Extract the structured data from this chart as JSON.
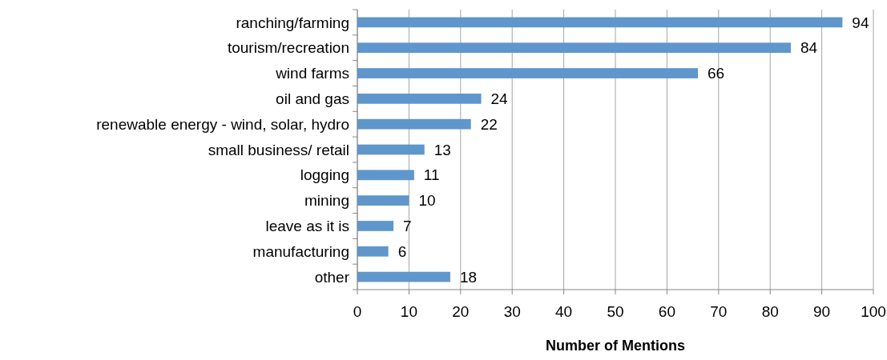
{
  "chart_data": {
    "type": "bar",
    "orientation": "horizontal",
    "xlabel": "Number of Mentions",
    "categories": [
      "ranching/farming",
      "tourism/recreation",
      "wind farms",
      "oil and gas",
      "renewable energy - wind, solar, hydro",
      "small business/ retail",
      "logging",
      "mining",
      "leave as it is",
      "manufacturing",
      "other"
    ],
    "values": [
      94,
      84,
      66,
      24,
      22,
      13,
      11,
      10,
      7,
      6,
      18
    ],
    "color": "#5f96cc",
    "data_labels": true,
    "grid": "x",
    "xlim": [
      0,
      100
    ],
    "xticks": [
      0,
      10,
      20,
      30,
      40,
      50,
      60,
      70,
      80,
      90,
      100
    ]
  }
}
